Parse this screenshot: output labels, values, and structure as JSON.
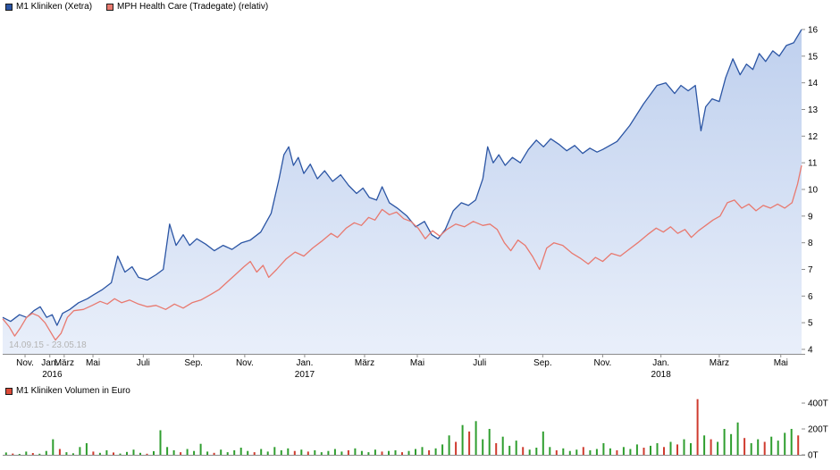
{
  "legend_top": {
    "series1": {
      "label": "M1 Kliniken (Xetra)",
      "color": "#2b55a4"
    },
    "series2": {
      "label": "MPH Health Care (Tradegate) (relativ)",
      "color": "#e8796f"
    }
  },
  "watermark": "14.09.15 - 23.05.18",
  "volume_legend": {
    "label": "M1 Kliniken Volumen in Euro",
    "color": "#dd4b38"
  },
  "chart_data": {
    "type": "line",
    "x_range": {
      "start": "14.09.15",
      "end": "23.05.18"
    },
    "y_axis": {
      "min": 4,
      "max": 16,
      "ticks": [
        16,
        15,
        14,
        13,
        12,
        11,
        10,
        9,
        8,
        7,
        6,
        5,
        4
      ]
    },
    "x_axis": {
      "ticks": [
        {
          "label": "Nov.",
          "f": 0.028
        },
        {
          "label": "Jan.",
          "f": 0.059
        },
        {
          "label": "März",
          "f": 0.077
        },
        {
          "label": "Mai",
          "f": 0.113
        },
        {
          "label": "Juli",
          "f": 0.176
        },
        {
          "label": "Sep.",
          "f": 0.239
        },
        {
          "label": "Nov.",
          "f": 0.303
        },
        {
          "label": "Jan.",
          "f": 0.378
        },
        {
          "label": "März",
          "f": 0.453
        },
        {
          "label": "Mai",
          "f": 0.519
        },
        {
          "label": "Juli",
          "f": 0.597
        },
        {
          "label": "Sep.",
          "f": 0.676
        },
        {
          "label": "Nov.",
          "f": 0.751
        },
        {
          "label": "Jan.",
          "f": 0.824
        },
        {
          "label": "März",
          "f": 0.897
        },
        {
          "label": "Mai",
          "f": 0.974
        }
      ],
      "years": [
        {
          "label": "2016",
          "f": 0.062
        },
        {
          "label": "2017",
          "f": 0.378
        },
        {
          "label": "2018",
          "f": 0.824
        }
      ]
    },
    "series": [
      {
        "name": "M1 Kliniken (Xetra)",
        "color": "#2b55a4",
        "fill": true,
        "points": [
          [
            0.0,
            5.2
          ],
          [
            0.01,
            5.05
          ],
          [
            0.021,
            5.3
          ],
          [
            0.03,
            5.2
          ],
          [
            0.039,
            5.45
          ],
          [
            0.047,
            5.6
          ],
          [
            0.055,
            5.2
          ],
          [
            0.062,
            5.3
          ],
          [
            0.068,
            4.9
          ],
          [
            0.075,
            5.35
          ],
          [
            0.084,
            5.5
          ],
          [
            0.095,
            5.75
          ],
          [
            0.106,
            5.9
          ],
          [
            0.114,
            6.05
          ],
          [
            0.125,
            6.25
          ],
          [
            0.136,
            6.5
          ],
          [
            0.144,
            7.5
          ],
          [
            0.153,
            6.9
          ],
          [
            0.162,
            7.1
          ],
          [
            0.17,
            6.7
          ],
          [
            0.181,
            6.6
          ],
          [
            0.192,
            6.8
          ],
          [
            0.201,
            7.0
          ],
          [
            0.209,
            8.7
          ],
          [
            0.217,
            7.9
          ],
          [
            0.226,
            8.3
          ],
          [
            0.234,
            7.9
          ],
          [
            0.243,
            8.15
          ],
          [
            0.254,
            7.95
          ],
          [
            0.265,
            7.7
          ],
          [
            0.276,
            7.9
          ],
          [
            0.287,
            7.75
          ],
          [
            0.299,
            8.0
          ],
          [
            0.31,
            8.1
          ],
          [
            0.323,
            8.4
          ],
          [
            0.336,
            9.1
          ],
          [
            0.346,
            10.4
          ],
          [
            0.352,
            11.3
          ],
          [
            0.358,
            11.6
          ],
          [
            0.364,
            10.9
          ],
          [
            0.37,
            11.2
          ],
          [
            0.377,
            10.6
          ],
          [
            0.385,
            10.95
          ],
          [
            0.394,
            10.4
          ],
          [
            0.403,
            10.7
          ],
          [
            0.413,
            10.3
          ],
          [
            0.423,
            10.55
          ],
          [
            0.433,
            10.15
          ],
          [
            0.443,
            9.85
          ],
          [
            0.451,
            10.05
          ],
          [
            0.459,
            9.7
          ],
          [
            0.468,
            9.6
          ],
          [
            0.475,
            10.1
          ],
          [
            0.484,
            9.5
          ],
          [
            0.494,
            9.3
          ],
          [
            0.506,
            9.0
          ],
          [
            0.517,
            8.6
          ],
          [
            0.528,
            8.8
          ],
          [
            0.537,
            8.3
          ],
          [
            0.545,
            8.15
          ],
          [
            0.554,
            8.5
          ],
          [
            0.564,
            9.2
          ],
          [
            0.574,
            9.5
          ],
          [
            0.583,
            9.4
          ],
          [
            0.592,
            9.6
          ],
          [
            0.601,
            10.4
          ],
          [
            0.607,
            11.6
          ],
          [
            0.614,
            11.0
          ],
          [
            0.621,
            11.3
          ],
          [
            0.629,
            10.9
          ],
          [
            0.638,
            11.2
          ],
          [
            0.648,
            11.0
          ],
          [
            0.658,
            11.5
          ],
          [
            0.668,
            11.85
          ],
          [
            0.677,
            11.6
          ],
          [
            0.686,
            11.9
          ],
          [
            0.696,
            11.7
          ],
          [
            0.706,
            11.45
          ],
          [
            0.716,
            11.65
          ],
          [
            0.726,
            11.35
          ],
          [
            0.735,
            11.55
          ],
          [
            0.744,
            11.4
          ],
          [
            0.751,
            11.5
          ],
          [
            0.769,
            11.8
          ],
          [
            0.785,
            12.4
          ],
          [
            0.802,
            13.2
          ],
          [
            0.819,
            13.9
          ],
          [
            0.83,
            14.0
          ],
          [
            0.841,
            13.6
          ],
          [
            0.849,
            13.9
          ],
          [
            0.858,
            13.7
          ],
          [
            0.867,
            13.9
          ],
          [
            0.874,
            12.2
          ],
          [
            0.88,
            13.1
          ],
          [
            0.888,
            13.4
          ],
          [
            0.897,
            13.3
          ],
          [
            0.905,
            14.2
          ],
          [
            0.914,
            14.9
          ],
          [
            0.923,
            14.3
          ],
          [
            0.931,
            14.7
          ],
          [
            0.939,
            14.5
          ],
          [
            0.947,
            15.1
          ],
          [
            0.955,
            14.8
          ],
          [
            0.964,
            15.2
          ],
          [
            0.972,
            15.0
          ],
          [
            0.981,
            15.4
          ],
          [
            0.99,
            15.5
          ],
          [
            1.0,
            16.0
          ]
        ]
      },
      {
        "name": "MPH Health Care (Tradegate) (relativ)",
        "color": "#e8796f",
        "fill": false,
        "points": [
          [
            0.0,
            5.15
          ],
          [
            0.008,
            4.85
          ],
          [
            0.015,
            4.5
          ],
          [
            0.022,
            4.8
          ],
          [
            0.03,
            5.2
          ],
          [
            0.037,
            5.35
          ],
          [
            0.045,
            5.25
          ],
          [
            0.053,
            5.0
          ],
          [
            0.059,
            4.7
          ],
          [
            0.066,
            4.35
          ],
          [
            0.073,
            4.6
          ],
          [
            0.081,
            5.2
          ],
          [
            0.089,
            5.45
          ],
          [
            0.101,
            5.5
          ],
          [
            0.112,
            5.65
          ],
          [
            0.122,
            5.8
          ],
          [
            0.131,
            5.7
          ],
          [
            0.14,
            5.9
          ],
          [
            0.149,
            5.75
          ],
          [
            0.159,
            5.85
          ],
          [
            0.17,
            5.7
          ],
          [
            0.181,
            5.6
          ],
          [
            0.192,
            5.65
          ],
          [
            0.204,
            5.5
          ],
          [
            0.215,
            5.7
          ],
          [
            0.226,
            5.55
          ],
          [
            0.237,
            5.75
          ],
          [
            0.248,
            5.85
          ],
          [
            0.26,
            6.05
          ],
          [
            0.271,
            6.25
          ],
          [
            0.282,
            6.55
          ],
          [
            0.293,
            6.85
          ],
          [
            0.302,
            7.1
          ],
          [
            0.31,
            7.3
          ],
          [
            0.318,
            6.9
          ],
          [
            0.326,
            7.15
          ],
          [
            0.333,
            6.7
          ],
          [
            0.343,
            7.0
          ],
          [
            0.355,
            7.4
          ],
          [
            0.366,
            7.65
          ],
          [
            0.377,
            7.5
          ],
          [
            0.388,
            7.8
          ],
          [
            0.399,
            8.05
          ],
          [
            0.411,
            8.35
          ],
          [
            0.419,
            8.2
          ],
          [
            0.43,
            8.55
          ],
          [
            0.44,
            8.75
          ],
          [
            0.449,
            8.65
          ],
          [
            0.458,
            8.95
          ],
          [
            0.466,
            8.85
          ],
          [
            0.475,
            9.25
          ],
          [
            0.484,
            9.05
          ],
          [
            0.493,
            9.15
          ],
          [
            0.502,
            8.9
          ],
          [
            0.511,
            8.8
          ],
          [
            0.52,
            8.55
          ],
          [
            0.529,
            8.15
          ],
          [
            0.538,
            8.45
          ],
          [
            0.547,
            8.25
          ],
          [
            0.556,
            8.5
          ],
          [
            0.567,
            8.7
          ],
          [
            0.578,
            8.6
          ],
          [
            0.589,
            8.8
          ],
          [
            0.601,
            8.65
          ],
          [
            0.61,
            8.7
          ],
          [
            0.619,
            8.5
          ],
          [
            0.628,
            8.0
          ],
          [
            0.636,
            7.7
          ],
          [
            0.645,
            8.1
          ],
          [
            0.654,
            7.9
          ],
          [
            0.663,
            7.5
          ],
          [
            0.672,
            7.0
          ],
          [
            0.681,
            7.8
          ],
          [
            0.69,
            8.0
          ],
          [
            0.701,
            7.9
          ],
          [
            0.713,
            7.6
          ],
          [
            0.724,
            7.4
          ],
          [
            0.733,
            7.2
          ],
          [
            0.742,
            7.45
          ],
          [
            0.751,
            7.3
          ],
          [
            0.762,
            7.6
          ],
          [
            0.773,
            7.5
          ],
          [
            0.784,
            7.75
          ],
          [
            0.795,
            8.0
          ],
          [
            0.807,
            8.3
          ],
          [
            0.818,
            8.55
          ],
          [
            0.827,
            8.4
          ],
          [
            0.836,
            8.6
          ],
          [
            0.845,
            8.35
          ],
          [
            0.854,
            8.5
          ],
          [
            0.862,
            8.2
          ],
          [
            0.871,
            8.45
          ],
          [
            0.88,
            8.65
          ],
          [
            0.889,
            8.85
          ],
          [
            0.898,
            9.0
          ],
          [
            0.907,
            9.5
          ],
          [
            0.916,
            9.6
          ],
          [
            0.925,
            9.3
          ],
          [
            0.934,
            9.45
          ],
          [
            0.943,
            9.2
          ],
          [
            0.952,
            9.4
          ],
          [
            0.961,
            9.3
          ],
          [
            0.97,
            9.45
          ],
          [
            0.979,
            9.3
          ],
          [
            0.988,
            9.5
          ],
          [
            0.995,
            10.2
          ],
          [
            1.0,
            10.9
          ]
        ]
      }
    ],
    "volume": {
      "name": "M1 Kliniken Volumen in Euro",
      "unit": "T",
      "axis_ticks": [
        {
          "label": "400T",
          "t": 400
        },
        {
          "label": "200T",
          "t": 200
        },
        {
          "label": "0T",
          "t": 0
        }
      ],
      "max": 435,
      "green": "#2f9e2f",
      "red": "#cf3b2f",
      "values": [
        18,
        10,
        6,
        25,
        14,
        8,
        30,
        120,
        45,
        20,
        12,
        60,
        90,
        25,
        15,
        35,
        18,
        10,
        22,
        40,
        15,
        8,
        28,
        190,
        60,
        35,
        20,
        45,
        30,
        85,
        25,
        15,
        40,
        20,
        35,
        55,
        30,
        20,
        45,
        25,
        60,
        35,
        50,
        30,
        40,
        25,
        35,
        20,
        30,
        45,
        25,
        35,
        50,
        30,
        20,
        40,
        25,
        30,
        35,
        20,
        30,
        45,
        60,
        35,
        50,
        80,
        150,
        100,
        230,
        180,
        260,
        120,
        200,
        90,
        140,
        70,
        110,
        60,
        40,
        55,
        180,
        60,
        35,
        50,
        30,
        40,
        60,
        35,
        45,
        90,
        50,
        35,
        60,
        45,
        80,
        55,
        70,
        90,
        60,
        100,
        80,
        120,
        90,
        430,
        150,
        120,
        100,
        200,
        160,
        250,
        130,
        90,
        120,
        100,
        140,
        110,
        170,
        200,
        150
      ],
      "red_indices": [
        1,
        4,
        8,
        13,
        16,
        21,
        26,
        31,
        37,
        43,
        45,
        51,
        56,
        59,
        63,
        67,
        69,
        73,
        77,
        82,
        86,
        91,
        95,
        98,
        100,
        103,
        105,
        110,
        113,
        118
      ]
    }
  }
}
